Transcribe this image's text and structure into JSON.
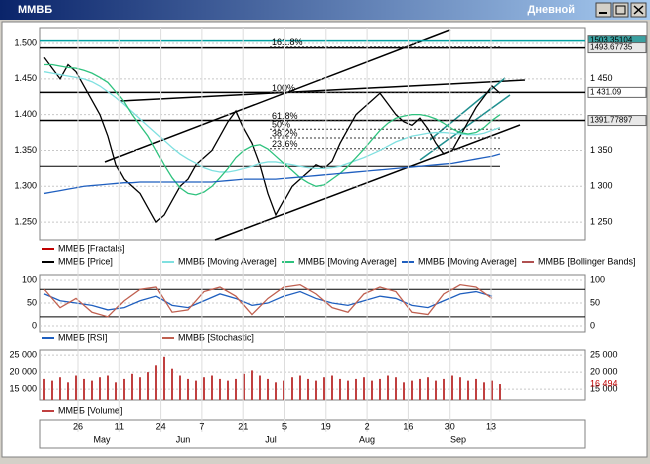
{
  "window": {
    "title": "ММВБ",
    "period": "Дневной"
  },
  "chart_data": [
    {
      "type": "line",
      "ylim": [
        1225,
        1521
      ],
      "yticks": [
        {
          "value": 1500,
          "label": "1.500"
        },
        {
          "value": 1450,
          "label": "1.450"
        },
        {
          "value": 1400,
          "label": "1.400"
        },
        {
          "value": 1350,
          "label": "1.350"
        },
        {
          "value": 1300,
          "label": "1.300"
        },
        {
          "value": 1250,
          "label": "1.250"
        }
      ],
      "y2lim": [
        1225,
        1521
      ],
      "y2ticks": [
        {
          "value": 1450,
          "label": "1 450"
        },
        {
          "value": 1350,
          "label": "1 350"
        },
        {
          "value": 1300,
          "label": "1 300"
        },
        {
          "value": 1250,
          "label": "1 250"
        }
      ],
      "series": [
        {
          "name": "ММВБ [Fractals]",
          "color": "#c00000"
        },
        {
          "name": "ММВБ [Price]",
          "color": "#000000",
          "values": [
            1480,
            1465,
            1450,
            1470,
            1460,
            1440,
            1420,
            1400,
            1370,
            1330,
            1310,
            1300,
            1290,
            1270,
            1250,
            1260,
            1280,
            1300,
            1310,
            1330,
            1340,
            1350,
            1370,
            1390,
            1405,
            1380,
            1360,
            1330,
            1290,
            1260,
            1280,
            1300,
            1310,
            1320,
            1330,
            1325,
            1335,
            1360,
            1380,
            1400,
            1410,
            1420,
            1430,
            1415,
            1400,
            1390,
            1385,
            1395,
            1380,
            1360,
            1345,
            1350,
            1370,
            1390,
            1410,
            1425,
            1440,
            1430
          ]
        },
        {
          "name": "ММВБ [Moving Average]",
          "color": "#7fe0e0",
          "values": [
            1460,
            1458,
            1456,
            1454,
            1452,
            1450,
            1446,
            1440,
            1432,
            1424,
            1414,
            1404,
            1394,
            1384,
            1374,
            1364,
            1354,
            1345,
            1338,
            1332,
            1326,
            1322,
            1320,
            1320,
            1322,
            1325,
            1328,
            1332,
            1334,
            1334,
            1332,
            1330,
            1328,
            1326,
            1325,
            1325,
            1326,
            1328,
            1332,
            1336,
            1340,
            1345,
            1350,
            1356,
            1362,
            1366,
            1370,
            1372,
            1374,
            1375,
            1375,
            1374,
            1373,
            1372,
            1372,
            1374,
            1378,
            1382
          ]
        },
        {
          "name": "ММВБ [Moving Average]",
          "color": "#2ec27e",
          "values": [
            1470,
            1470,
            1468,
            1466,
            1465,
            1462,
            1458,
            1452,
            1445,
            1432,
            1418,
            1400,
            1385,
            1370,
            1350,
            1330,
            1312,
            1298,
            1290,
            1288,
            1292,
            1300,
            1312,
            1325,
            1340,
            1350,
            1356,
            1358,
            1352,
            1342,
            1332,
            1322,
            1312,
            1305,
            1300,
            1302,
            1310,
            1318,
            1328,
            1340,
            1352,
            1365,
            1378,
            1388,
            1395,
            1398,
            1400,
            1400,
            1398,
            1394,
            1388,
            1380,
            1375,
            1373,
            1375,
            1382,
            1392,
            1400
          ]
        },
        {
          "name": "ММВБ [Moving Average]",
          "color": "#1f5fbf",
          "values": [
            1290,
            1292,
            1294,
            1296,
            1298,
            1300,
            1301,
            1302,
            1303,
            1304,
            1305,
            1305,
            1306,
            1306,
            1306,
            1306,
            1306,
            1306,
            1306,
            1306,
            1306,
            1306,
            1307,
            1308,
            1309,
            1310,
            1310,
            1310,
            1310,
            1310,
            1311,
            1312,
            1313,
            1314,
            1315,
            1316,
            1317,
            1318,
            1319,
            1320,
            1321,
            1322,
            1323,
            1324,
            1325,
            1326,
            1327,
            1328,
            1329,
            1330,
            1331,
            1332,
            1334,
            1336,
            1338,
            1340,
            1342,
            1345
          ]
        },
        {
          "name": "ММВБ [Bollinger Bands]",
          "color": "#b05050"
        }
      ],
      "price_levels": [
        {
          "value": 1503.35104,
          "label": "1503.35104",
          "color": "#00a0a0"
        },
        {
          "value": 1493.67735,
          "label": "1493.67735",
          "color": "#000000"
        },
        {
          "value": 1431.09,
          "label": "1 431.09",
          "color": "#000000"
        },
        {
          "value": 1391.77897,
          "label": "1391.77897",
          "color": "#000000"
        }
      ],
      "fibonacci": {
        "base": 1328,
        "top": 1431.09,
        "levels": [
          {
            "value": 161.8,
            "label": "161.8%"
          },
          {
            "value": 100,
            "label": "100%"
          },
          {
            "value": 61.8,
            "label": "61.8%"
          },
          {
            "value": 50,
            "label": "50%"
          },
          {
            "value": 38.2,
            "label": "38.2%"
          },
          {
            "value": 23.6,
            "label": "23.6%"
          }
        ]
      }
    },
    {
      "type": "line",
      "ylim": [
        -13,
        111
      ],
      "yticks": [
        0,
        50,
        100
      ],
      "levels": [
        80,
        20
      ],
      "series": [
        {
          "name": "ММВБ [RSI]",
          "color": "#1f5fbf",
          "values": [
            70,
            55,
            50,
            45,
            35,
            40,
            55,
            65,
            45,
            40,
            55,
            70,
            60,
            45,
            50,
            65,
            75,
            60,
            50,
            45,
            55,
            65,
            60,
            45,
            40,
            55,
            70,
            75,
            65
          ]
        },
        {
          "name": "ММВБ [Stochastic]",
          "color": "#c06050",
          "values": [
            80,
            40,
            60,
            30,
            20,
            55,
            80,
            85,
            30,
            35,
            75,
            85,
            65,
            25,
            60,
            85,
            90,
            70,
            40,
            30,
            70,
            85,
            75,
            30,
            25,
            70,
            90,
            85,
            60
          ]
        }
      ]
    },
    {
      "type": "bar",
      "ylim": [
        11800,
        26500
      ],
      "yticks": [
        {
          "value": 25000,
          "label": "25 000"
        },
        {
          "value": 20000,
          "label": "20 000"
        },
        {
          "value": 15000,
          "label": "15 000"
        }
      ],
      "series": [
        {
          "name": "ММВБ [Volume]",
          "color": "#c04040",
          "values": [
            18000,
            17500,
            18500,
            17000,
            19000,
            18000,
            17500,
            18500,
            19000,
            17000,
            18000,
            19500,
            18500,
            20000,
            22000,
            24500,
            21000,
            19000,
            18000,
            17500,
            18500,
            19000,
            18000,
            17500,
            18000,
            19500,
            20500,
            19000,
            18000,
            17000,
            17500,
            18500,
            19000,
            18000,
            17500,
            18500,
            19000,
            18000,
            17500,
            18000,
            18500,
            17500,
            18000,
            19000,
            18500,
            17000,
            17500,
            18000,
            18500,
            17500,
            18000,
            19000,
            18500,
            17500,
            18000,
            17000,
            17500,
            16494
          ]
        }
      ],
      "last_label": "16 494"
    }
  ],
  "x_axis": {
    "days": [
      "26",
      "11",
      "24",
      "7",
      "21",
      "5",
      "19",
      "2",
      "16",
      "30",
      "13"
    ],
    "months": [
      "May",
      "Jun",
      "Jul",
      "Aug",
      "Sep"
    ]
  }
}
